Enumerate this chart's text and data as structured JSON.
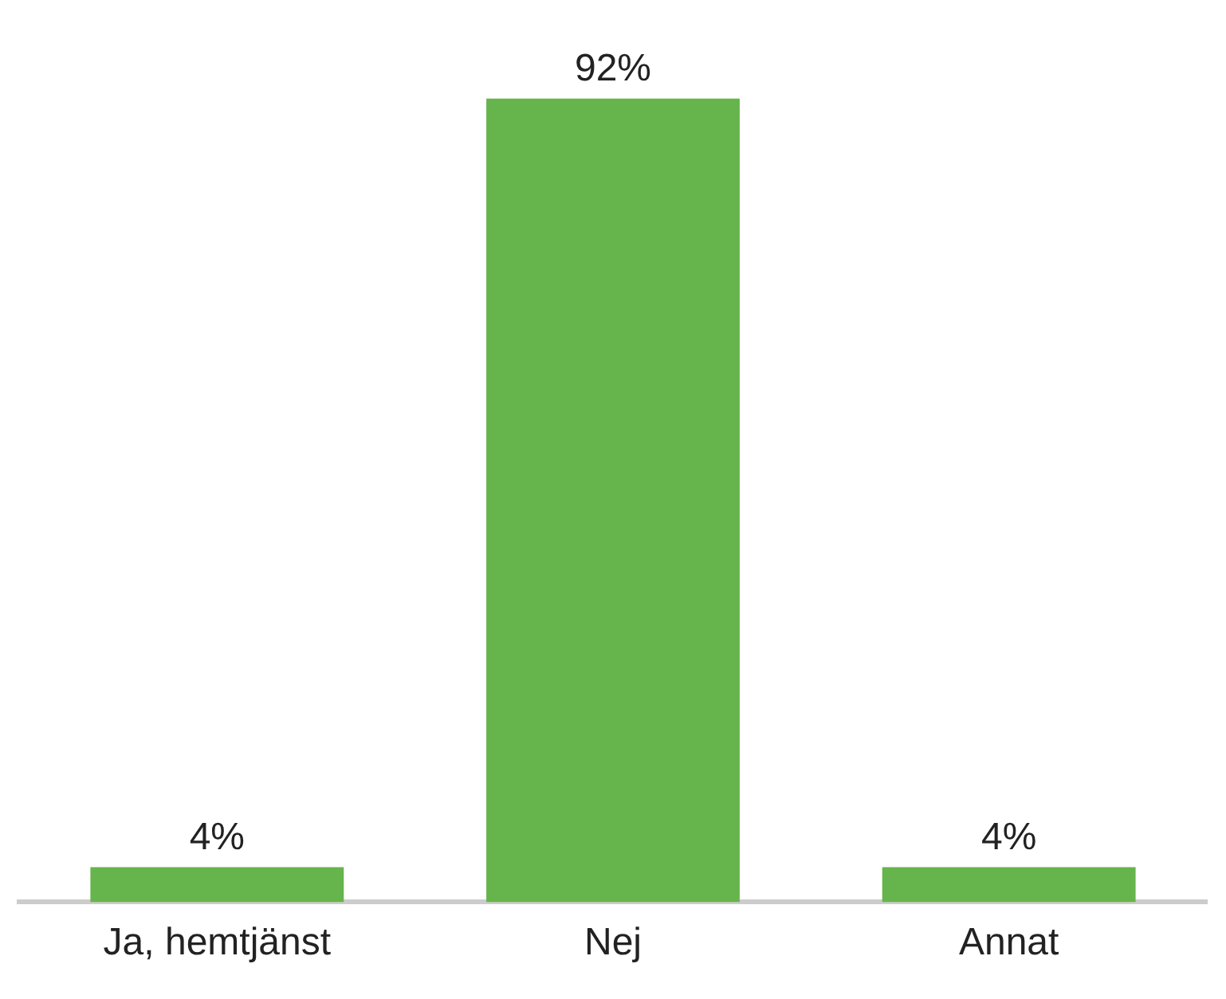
{
  "chart_data": {
    "type": "bar",
    "categories": [
      "Ja, hemtjänst",
      "Nej",
      "Annat"
    ],
    "values": [
      4,
      92,
      4
    ],
    "color": "#66b44c",
    "value_labels": [
      "4%",
      "92%",
      "4%"
    ],
    "grid": false,
    "legend": false
  }
}
